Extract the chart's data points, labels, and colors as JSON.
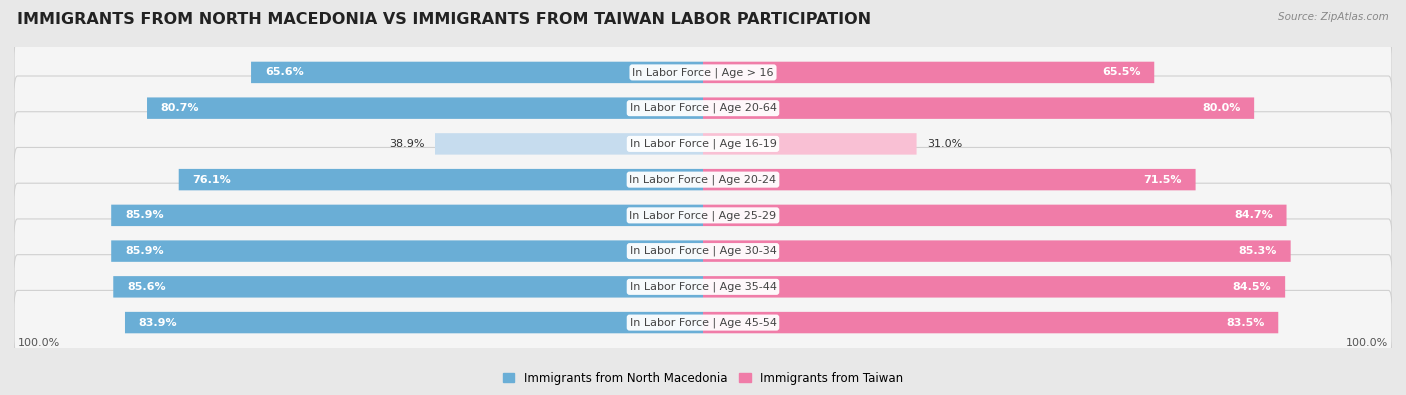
{
  "title": "IMMIGRANTS FROM NORTH MACEDONIA VS IMMIGRANTS FROM TAIWAN LABOR PARTICIPATION",
  "source": "Source: ZipAtlas.com",
  "categories": [
    "In Labor Force | Age > 16",
    "In Labor Force | Age 20-64",
    "In Labor Force | Age 16-19",
    "In Labor Force | Age 20-24",
    "In Labor Force | Age 25-29",
    "In Labor Force | Age 30-34",
    "In Labor Force | Age 35-44",
    "In Labor Force | Age 45-54"
  ],
  "left_values": [
    65.6,
    80.7,
    38.9,
    76.1,
    85.9,
    85.9,
    85.6,
    83.9
  ],
  "right_values": [
    65.5,
    80.0,
    31.0,
    71.5,
    84.7,
    85.3,
    84.5,
    83.5
  ],
  "left_color": "#6aaed6",
  "right_color": "#f07ca8",
  "left_color_light": "#c6dcee",
  "right_color_light": "#f9c0d4",
  "left_label": "Immigrants from North Macedonia",
  "right_label": "Immigrants from Taiwan",
  "background_color": "#e8e8e8",
  "row_bg_color": "#f5f5f5",
  "row_border_color": "#d0d0d0",
  "max_val": 100.0,
  "title_fontsize": 11.5,
  "label_fontsize": 8,
  "value_fontsize": 8,
  "axis_label_fontsize": 8
}
